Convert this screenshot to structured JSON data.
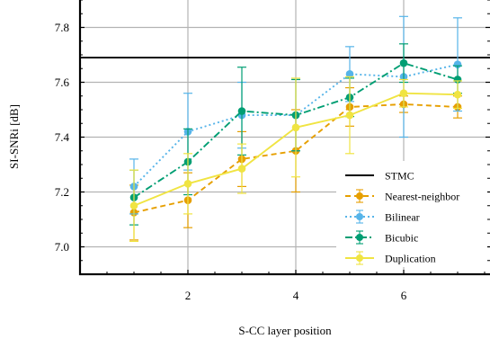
{
  "chart_data": {
    "type": "line",
    "title": "",
    "xlabel": "S-CC layer position",
    "ylabel": "SI-SNRi [dB]",
    "xlim": [
      0.0,
      7.6
    ],
    "ylim": [
      6.9,
      7.9
    ],
    "xticks": [
      2,
      4,
      6
    ],
    "yticks": [
      7.0,
      7.2,
      7.4,
      7.6,
      7.8
    ],
    "grid": true,
    "legend_position": "lower-right",
    "reference_line": {
      "name": "STMC",
      "value": 7.69,
      "color": "#000000"
    },
    "x": [
      1,
      2,
      3,
      4,
      5,
      6,
      7
    ],
    "series": [
      {
        "name": "Nearest-neighbor",
        "color": "#E69F00",
        "style": "dashed",
        "values": [
          7.125,
          7.17,
          7.32,
          7.35,
          7.51,
          7.52,
          7.51
        ],
        "errors": [
          0.1,
          0.1,
          0.1,
          0.15,
          0.07,
          0.03,
          0.04
        ]
      },
      {
        "name": "Bilinear",
        "color": "#56B4E9",
        "style": "dotted",
        "values": [
          7.22,
          7.42,
          7.48,
          7.48,
          7.63,
          7.62,
          7.665
        ],
        "errors": [
          0.1,
          0.14,
          0.12,
          0.13,
          0.1,
          0.22,
          0.17
        ]
      },
      {
        "name": "Bicubic",
        "color": "#009E73",
        "style": "dashdot",
        "values": [
          7.18,
          7.31,
          7.495,
          7.48,
          7.545,
          7.67,
          7.61
        ],
        "errors": [
          0.1,
          0.12,
          0.16,
          0.13,
          0.07,
          0.07,
          0.05
        ]
      },
      {
        "name": "Duplication",
        "color": "#F0E442",
        "style": "solid",
        "values": [
          7.15,
          7.23,
          7.285,
          7.435,
          7.48,
          7.56,
          7.555
        ],
        "errors": [
          0.13,
          0.11,
          0.09,
          0.18,
          0.14,
          0.05,
          0.05
        ]
      }
    ]
  }
}
